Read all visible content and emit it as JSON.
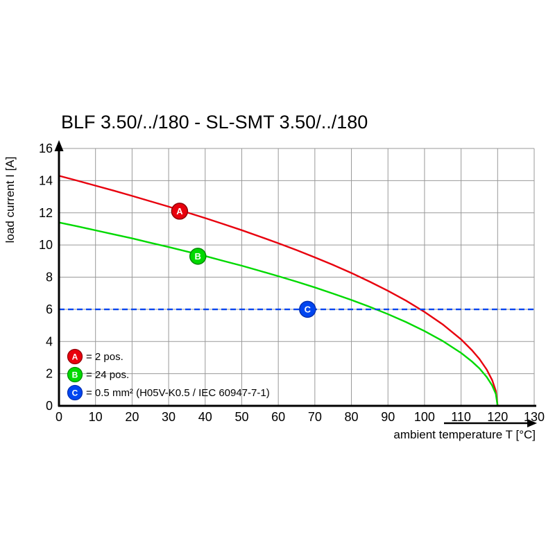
{
  "title": "BLF 3.50/../180 - SL-SMT 3.50/../180",
  "chart_data": {
    "type": "line",
    "title": "BLF 3.50/../180 - SL-SMT 3.50/../180",
    "xlabel": "ambient temperature T [°C]",
    "ylabel": "load current I [A]",
    "xlim": [
      0,
      130
    ],
    "ylim": [
      0,
      16
    ],
    "x_ticks": [
      0,
      10,
      20,
      30,
      40,
      50,
      60,
      70,
      80,
      90,
      100,
      110,
      120,
      130
    ],
    "y_ticks": [
      0,
      2,
      4,
      6,
      8,
      10,
      12,
      14,
      16
    ],
    "grid": true,
    "grid_color": "#999999",
    "axis_color": "#000000",
    "legend_position": "inside-bottom-left",
    "series": [
      {
        "id": "A",
        "legend": "= 2 pos.",
        "color": "#e8000d",
        "marker_edge": "#8f0008",
        "dashed": false,
        "marker_at": [
          33,
          12.1
        ],
        "points": [
          [
            0,
            14.3
          ],
          [
            5,
            14.0
          ],
          [
            10,
            13.69
          ],
          [
            15,
            13.38
          ],
          [
            20,
            13.05
          ],
          [
            25,
            12.72
          ],
          [
            30,
            12.38
          ],
          [
            35,
            12.03
          ],
          [
            40,
            11.67
          ],
          [
            45,
            11.3
          ],
          [
            50,
            10.92
          ],
          [
            55,
            10.52
          ],
          [
            60,
            10.11
          ],
          [
            65,
            9.68
          ],
          [
            70,
            9.23
          ],
          [
            75,
            8.76
          ],
          [
            80,
            8.26
          ],
          [
            85,
            7.72
          ],
          [
            90,
            7.15
          ],
          [
            95,
            6.53
          ],
          [
            100,
            5.84
          ],
          [
            105,
            5.06
          ],
          [
            110,
            4.13
          ],
          [
            113,
            3.45
          ],
          [
            115,
            2.92
          ],
          [
            117,
            2.26
          ],
          [
            118.5,
            1.6
          ],
          [
            119.5,
            0.93
          ],
          [
            120,
            0
          ]
        ]
      },
      {
        "id": "B",
        "legend": "= 24 pos.",
        "color": "#00d900",
        "marker_edge": "#008a00",
        "dashed": false,
        "marker_at": [
          38,
          9.3
        ],
        "points": [
          [
            0,
            11.4
          ],
          [
            5,
            11.16
          ],
          [
            10,
            10.91
          ],
          [
            15,
            10.66
          ],
          [
            20,
            10.41
          ],
          [
            25,
            10.14
          ],
          [
            30,
            9.87
          ],
          [
            35,
            9.59
          ],
          [
            40,
            9.31
          ],
          [
            45,
            9.01
          ],
          [
            50,
            8.71
          ],
          [
            55,
            8.39
          ],
          [
            60,
            8.06
          ],
          [
            65,
            7.72
          ],
          [
            70,
            7.36
          ],
          [
            75,
            6.98
          ],
          [
            80,
            6.58
          ],
          [
            85,
            6.16
          ],
          [
            90,
            5.7
          ],
          [
            95,
            5.2
          ],
          [
            100,
            4.65
          ],
          [
            105,
            4.03
          ],
          [
            110,
            3.29
          ],
          [
            113,
            2.75
          ],
          [
            115,
            2.33
          ],
          [
            117,
            1.8
          ],
          [
            118.5,
            1.27
          ],
          [
            119.5,
            0.74
          ],
          [
            120,
            0
          ]
        ]
      },
      {
        "id": "C",
        "legend": "= 0.5 mm² (H05V-K0.5 / IEC 60947-7-1)",
        "color": "#0046f0",
        "marker_edge": "#002db0",
        "dashed": true,
        "marker_at": [
          68,
          6
        ],
        "points": [
          [
            0,
            6
          ],
          [
            130,
            6
          ]
        ]
      }
    ]
  }
}
